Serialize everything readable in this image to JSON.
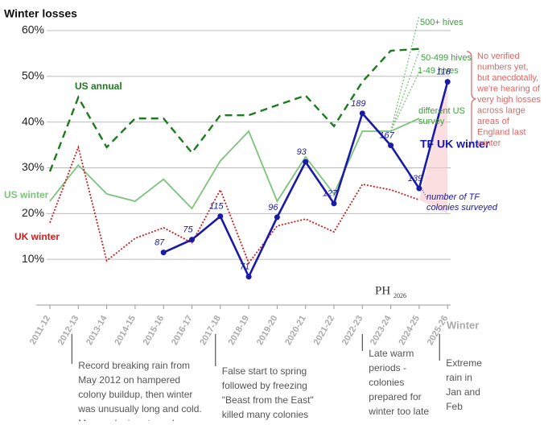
{
  "chart_data": {
    "type": "line",
    "title": "Winter losses",
    "x_label": "Winter",
    "categories": [
      "2011-12",
      "2012-13",
      "2013-14",
      "2014-15",
      "2015-16",
      "2016-17",
      "2017-18",
      "2018-19",
      "2019-20",
      "2020-21",
      "2021-22",
      "2022-23",
      "2023-24",
      "2024-25",
      "2025-26"
    ],
    "ylim": [
      0,
      60
    ],
    "yticks": [
      {
        "value": 10,
        "label": "10%"
      },
      {
        "value": 20,
        "label": "20%"
      },
      {
        "value": 30,
        "label": "30%"
      },
      {
        "value": 40,
        "label": "40%"
      },
      {
        "value": 50,
        "label": "50%"
      },
      {
        "value": 60,
        "label": "60%"
      }
    ],
    "grid": true,
    "series": [
      {
        "name": "US annual",
        "color": "#1e7a1e",
        "line_style": "dashed",
        "values": [
          29.2,
          45.4,
          34.5,
          40.8,
          40.8,
          33.3,
          41.5,
          41.5,
          43.7,
          45.8,
          39.1,
          48.8,
          55.6,
          56,
          null
        ]
      },
      {
        "name": "US winter",
        "color": "#7cc47c",
        "line_style": "solid",
        "values": [
          22.7,
          30.6,
          24.3,
          22.7,
          27.5,
          21.1,
          31.5,
          38,
          22.7,
          32.4,
          24.3,
          38,
          38,
          40.8,
          null
        ]
      },
      {
        "name": "UK winter",
        "color": "#cc1f1f",
        "line_style": "dotted",
        "values": [
          18,
          34.5,
          9.7,
          14.6,
          16.9,
          13.6,
          25.2,
          9.2,
          17.3,
          18.8,
          16,
          26.4,
          25.2,
          23,
          null
        ]
      },
      {
        "name": "TF UK winter",
        "color": "#1a1aa8",
        "line_style": "solid",
        "markers": true,
        "values": [
          null,
          null,
          null,
          null,
          11.5,
          14.3,
          19.4,
          6.2,
          19.2,
          31.3,
          22.2,
          41.9,
          34.9,
          25.5,
          48.8
        ],
        "sample_sizes": [
          null,
          null,
          null,
          null,
          87,
          75,
          115,
          71,
          96,
          93,
          127,
          189,
          167,
          139,
          118
        ]
      }
    ],
    "fan": [
      {
        "label": "500+ hives",
        "value": 63.2
      },
      {
        "label": "50-499 hives",
        "value": 55.5
      },
      {
        "label": "1-49 hives",
        "value": 51
      }
    ],
    "fan_color": "#7cc47c",
    "uk_estimate_range": [
      20,
      49
    ],
    "annotations": {
      "different_survey": [
        "different US",
        "survey"
      ],
      "sample_note": [
        "number of TF",
        "colonies surveyed"
      ],
      "anecdote": [
        "No verified",
        "numbers yet,",
        "but anecdotally,",
        "we're hearing of",
        "very high losses",
        "across large",
        "areas of",
        "England last",
        "winter"
      ]
    },
    "notes": [
      {
        "category": 1,
        "lines": [
          "Record breaking rain from",
          "May 2012 on hampered",
          "colony buildup, then winter",
          "was unusually long and cold.",
          "Many colonies starved."
        ]
      },
      {
        "category": 6,
        "lines": [
          "False start to spring",
          "followed by freezing",
          "\"Beast from the East\"",
          "killed many colonies"
        ]
      },
      {
        "category": 11,
        "lines": [
          "Late warm",
          "periods -",
          "colonies",
          "prepared for",
          "winter too late"
        ]
      },
      {
        "category": 14,
        "lines": [
          "Extreme",
          "rain in",
          "Jan and",
          "Feb"
        ]
      }
    ],
    "signature": "PH",
    "signature_year": "2026"
  }
}
